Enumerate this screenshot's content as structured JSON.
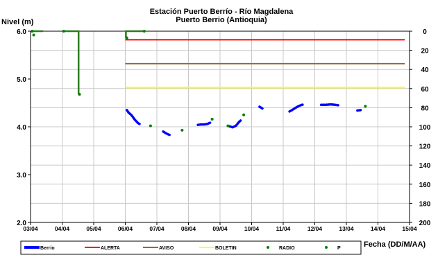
{
  "chart_data": {
    "type": "line",
    "title": "Estación Puerto Berrío - Río Magdalena",
    "subtitle": "Puerto Berrio (Antioquia)",
    "ylabel": "Nivel (m)",
    "xlabel": "Fecha (DD/M/AA)",
    "ylim": [
      2.0,
      6.0
    ],
    "y2lim": [
      0,
      200
    ],
    "y2_inverted": true,
    "xlim": [
      0,
      12
    ],
    "x_ticks": [
      "03/04",
      "04/04",
      "05/04",
      "06/04",
      "07/04",
      "08/04",
      "09/04",
      "10/04",
      "11/04",
      "12/04",
      "13/04",
      "14/04",
      "15/04"
    ],
    "y_ticks": [
      "2.0",
      "3.0",
      "4.0",
      "5.0",
      "6.0"
    ],
    "y2_ticks": [
      "0",
      "20",
      "40",
      "60",
      "80",
      "100",
      "120",
      "140",
      "160",
      "180",
      "200"
    ],
    "grid": true,
    "legend_position": "bottom",
    "colors": {
      "berrio": "#0000ff",
      "alerta": "#ff0000",
      "aviso": "#996633",
      "boletin": "#ffff00",
      "radio": "#008000",
      "p": "#008000",
      "p_line": "#2d7a1f"
    },
    "series": [
      {
        "name": "Berrio",
        "axis": "left",
        "style": "thick-line",
        "segments": [
          [
            [
              3.05,
              4.35
            ],
            [
              3.1,
              4.3
            ],
            [
              3.2,
              4.24
            ],
            [
              3.3,
              4.15
            ],
            [
              3.4,
              4.08
            ],
            [
              3.45,
              4.06
            ]
          ],
          [
            [
              4.2,
              3.9
            ],
            [
              4.3,
              3.86
            ],
            [
              4.4,
              3.83
            ]
          ],
          [
            [
              5.3,
              4.04
            ],
            [
              5.4,
              4.05
            ],
            [
              5.5,
              4.05
            ],
            [
              5.6,
              4.06
            ],
            [
              5.7,
              4.09
            ]
          ],
          [
            [
              6.3,
              4.01
            ],
            [
              6.4,
              3.99
            ],
            [
              6.5,
              4.02
            ],
            [
              6.6,
              4.1
            ],
            [
              6.65,
              4.13
            ]
          ],
          [
            [
              7.25,
              4.42
            ],
            [
              7.35,
              4.38
            ]
          ],
          [
            [
              8.2,
              4.32
            ],
            [
              8.3,
              4.36
            ],
            [
              8.45,
              4.42
            ],
            [
              8.55,
              4.45
            ],
            [
              8.65,
              4.47
            ]
          ],
          [
            [
              9.2,
              4.46
            ],
            [
              9.35,
              4.46
            ],
            [
              9.5,
              4.47
            ],
            [
              9.65,
              4.46
            ],
            [
              9.75,
              4.45
            ]
          ],
          [
            [
              10.35,
              4.34
            ],
            [
              10.45,
              4.35
            ]
          ]
        ]
      },
      {
        "name": "ALERTA",
        "axis": "left",
        "style": "line",
        "x": [
          3.0,
          11.85
        ],
        "y": [
          5.82,
          5.82
        ]
      },
      {
        "name": "AVISO",
        "axis": "left",
        "style": "line",
        "x": [
          3.0,
          11.85
        ],
        "y": [
          5.32,
          5.32
        ]
      },
      {
        "name": "BOLETIN",
        "axis": "left",
        "style": "line",
        "x": [
          3.0,
          11.85
        ],
        "y": [
          4.82,
          4.82
        ]
      },
      {
        "name": "RADIO",
        "axis": "left",
        "style": "points",
        "points": [
          [
            3.8,
            4.02
          ],
          [
            4.8,
            3.93
          ],
          [
            5.75,
            4.16
          ],
          [
            6.25,
            4.02
          ],
          [
            6.75,
            4.25
          ],
          [
            10.6,
            4.43
          ]
        ]
      },
      {
        "name": "P",
        "axis": "right",
        "style": "points-with-stems",
        "points": [
          [
            0.05,
            0
          ],
          [
            0.1,
            4
          ],
          [
            1.05,
            0
          ],
          [
            1.55,
            66
          ],
          [
            3.05,
            7
          ],
          [
            3.6,
            0
          ]
        ],
        "lines": [
          [
            [
              0.05,
              0
            ],
            [
              0.4,
              0
            ]
          ],
          [
            [
              1.05,
              0
            ],
            [
              1.5,
              0
            ],
            [
              1.52,
              0
            ],
            [
              1.52,
              66
            ]
          ],
          [
            [
              3.02,
              7
            ],
            [
              3.02,
              0
            ],
            [
              3.6,
              0
            ]
          ]
        ]
      }
    ]
  }
}
